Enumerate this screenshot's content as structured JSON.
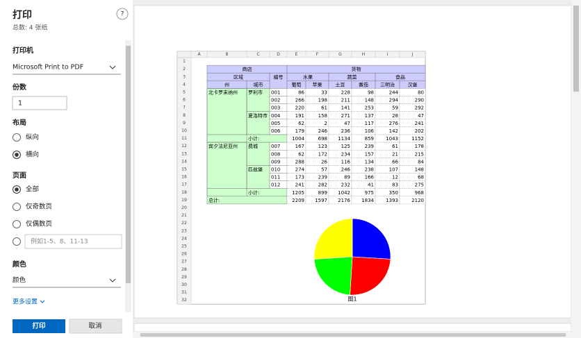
{
  "dialog": {
    "title": "打印",
    "subtitle": "总数: 4 张纸",
    "help": "?",
    "printer_label": "打印机",
    "printer": "Microsoft Print to PDF",
    "copies_label": "份数",
    "copies": "1",
    "layout_label": "布局",
    "layout_options": [
      "纵向",
      "横向"
    ],
    "pages_label": "页面",
    "pages_options": [
      "全部",
      "仅奇数页",
      "仅偶数页"
    ],
    "pages_placeholder": "例如1-5、8、11-13",
    "color_label": "颜色",
    "color": "颜色",
    "more": "更多设置",
    "print": "打印",
    "cancel": "取消"
  },
  "sheet": {
    "columns": [
      "A",
      "B",
      "C",
      "D",
      "E",
      "F",
      "G",
      "H",
      "I",
      "J"
    ],
    "rows": [
      1,
      2,
      3,
      4,
      5,
      6,
      7,
      8,
      9,
      10,
      11,
      12,
      13,
      14,
      15,
      16,
      17,
      18,
      19,
      20,
      21,
      22,
      23,
      24,
      25,
      26,
      27,
      28,
      29,
      30,
      31,
      32
    ],
    "header": {
      "shop": "商店",
      "goods": "货物",
      "region": "区域",
      "id": "编号",
      "groups": [
        "水果",
        "蔬菜",
        "食品"
      ],
      "state": "州",
      "city": "城市",
      "items": [
        "葡萄",
        "苹果",
        "土豆",
        "番茄",
        "三明治",
        "汉堡"
      ]
    },
    "states": [
      {
        "name": "北卡罗来纳州",
        "cities": [
          {
            "name": "罗利市",
            "rows": [
              {
                "id": "001",
                "values": [
                  86,
                  33,
                  228,
                  98,
                  244,
                  80
                ]
              },
              {
                "id": "002",
                "values": [
                  266,
                  198,
                  211,
                  148,
                  294,
                  290
                ]
              },
              {
                "id": "003",
                "values": [
                  220,
                  61,
                  141,
                  253,
                  59,
                  292
                ]
              }
            ]
          },
          {
            "name": "夏洛特市",
            "rows": [
              {
                "id": "004",
                "values": [
                  191,
                  158,
                  271,
                  137,
                  28,
                  47
                ]
              },
              {
                "id": "005",
                "values": [
                  62,
                  2,
                  47,
                  117,
                  276,
                  241
                ]
              },
              {
                "id": "006",
                "values": [
                  179,
                  246,
                  236,
                  106,
                  142,
                  202
                ]
              }
            ]
          }
        ],
        "subtotal_label": "小计:",
        "subtotal": [
          1004,
          698,
          1134,
          859,
          1043,
          1152
        ]
      },
      {
        "name": "宾夕法尼亚州",
        "cities": [
          {
            "name": "费城",
            "rows": [
              {
                "id": "007",
                "values": [
                  167,
                  123,
                  125,
                  239,
                  61,
                  178
                ]
              },
              {
                "id": "008",
                "values": [
                  62,
                  172,
                  234,
                  157,
                  21,
                  215
                ]
              },
              {
                "id": "009",
                "values": [
                  288,
                  26,
                  116,
                  134,
                  66,
                  84
                ]
              }
            ]
          },
          {
            "name": "匹兹堡",
            "rows": [
              {
                "id": "010",
                "values": [
                  274,
                  57,
                  246,
                  238,
                  107,
                  148
                ]
              },
              {
                "id": "011",
                "values": [
                  173,
                  239,
                  89,
                  166,
                  12,
                  68
                ]
              },
              {
                "id": "012",
                "values": [
                  241,
                  282,
                  232,
                  41,
                  83,
                  275
                ]
              }
            ]
          }
        ],
        "subtotal_label": "小计:",
        "subtotal": [
          1205,
          899,
          1042,
          975,
          350,
          968
        ]
      }
    ],
    "total_label": "总计:",
    "total": [
      2209,
      1597,
      2176,
      1834,
      1393,
      2120
    ]
  },
  "pie": {
    "type": "pie",
    "values": [
      26,
      25,
      23,
      26
    ],
    "colors": [
      "#0000ff",
      "#ff0000",
      "#00ff00",
      "#ffff00"
    ],
    "caption": "图1"
  }
}
